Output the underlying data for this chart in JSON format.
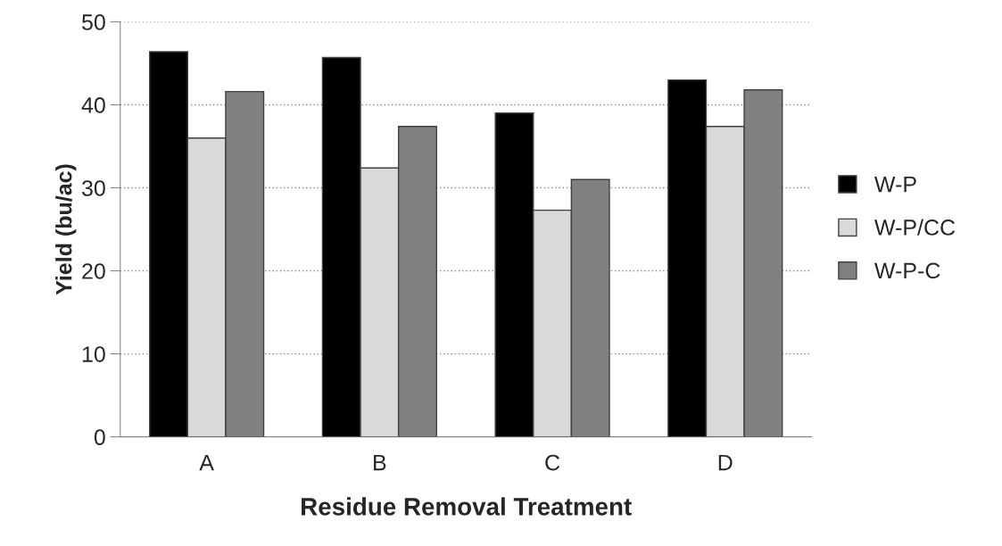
{
  "chart_data": {
    "type": "bar",
    "xlabel": "Residue Removal Treatment",
    "ylabel": "Yield (bu/ac)",
    "categories": [
      "A",
      "B",
      "C",
      "D"
    ],
    "series": [
      {
        "name": "W-P",
        "color": "#000000",
        "values": [
          46.4,
          45.7,
          39.0,
          43.0
        ]
      },
      {
        "name": "W-P/CC",
        "color": "#d9d9d9",
        "values": [
          36.0,
          32.4,
          27.3,
          37.4
        ]
      },
      {
        "name": "W-P-C",
        "color": "#808080",
        "values": [
          41.6,
          37.4,
          31.0,
          41.8
        ]
      }
    ],
    "ylim": [
      0,
      50
    ],
    "yticks": [
      0,
      10,
      20,
      30,
      40,
      50
    ],
    "grid": "y",
    "legend": "right"
  }
}
